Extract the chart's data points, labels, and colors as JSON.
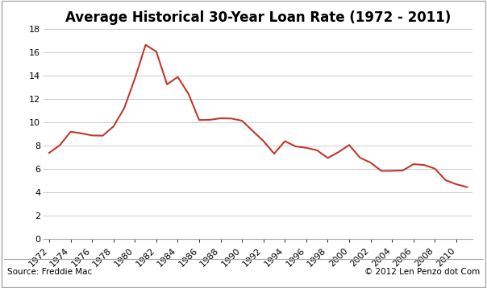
{
  "title": "Average Historical 30-Year Loan Rate (1972 - 2011)",
  "years": [
    1972,
    1973,
    1974,
    1975,
    1976,
    1977,
    1978,
    1979,
    1980,
    1981,
    1982,
    1983,
    1984,
    1985,
    1986,
    1987,
    1988,
    1989,
    1990,
    1991,
    1992,
    1993,
    1994,
    1995,
    1996,
    1997,
    1998,
    1999,
    2000,
    2001,
    2002,
    2003,
    2004,
    2005,
    2006,
    2007,
    2008,
    2009,
    2010,
    2011
  ],
  "rates": [
    7.38,
    8.04,
    9.19,
    9.05,
    8.87,
    8.85,
    9.64,
    11.2,
    13.74,
    16.63,
    16.04,
    13.24,
    13.88,
    12.43,
    10.19,
    10.21,
    10.34,
    10.32,
    10.13,
    9.25,
    8.39,
    7.31,
    8.38,
    7.93,
    7.81,
    7.6,
    6.94,
    7.44,
    8.05,
    6.97,
    6.54,
    5.83,
    5.84,
    5.87,
    6.41,
    6.34,
    6.03,
    5.04,
    4.69,
    4.45
  ],
  "line_color": "#c0392b",
  "bg_color": "#ffffff",
  "plot_bg_color": "#ffffff",
  "border_color": "#aaaaaa",
  "grid_color": "#cccccc",
  "ylim": [
    0,
    18
  ],
  "yticks": [
    0,
    2,
    4,
    6,
    8,
    10,
    12,
    14,
    16,
    18
  ],
  "source_text": "Source: Freddie Mac",
  "copyright_text": "© 2012 Len Penzo dot Com",
  "title_fontsize": 12,
  "tick_fontsize": 8,
  "footer_fontsize": 7.5
}
